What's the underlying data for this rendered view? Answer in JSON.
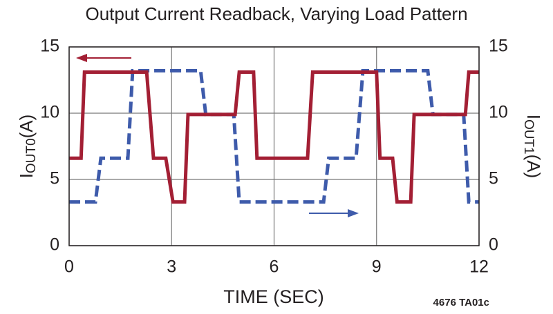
{
  "chart_data": {
    "type": "line",
    "title": "Output Current Readback, Varying Load Pattern",
    "x_label": "TIME (SEC)",
    "y_label": {
      "main": "I",
      "sub": "OUT0",
      "unit": "(A)"
    },
    "y2_label": {
      "main": "I",
      "sub": "OUT1",
      "unit": "(A)"
    },
    "footnote": "4676 TA01c",
    "xlim": [
      0,
      12
    ],
    "xticks": [
      0,
      3,
      6,
      9,
      12
    ],
    "ylim": [
      0,
      15
    ],
    "yticks": [
      0,
      5,
      10,
      15
    ],
    "y2lim": [
      0,
      15
    ],
    "y2ticks": [
      0,
      5,
      10,
      15
    ],
    "grid": true,
    "series": [
      {
        "color": "#a31f34",
        "dashed": false,
        "x": [
          0,
          0.35,
          0.45,
          2.27,
          2.47,
          2.83,
          3.04,
          3.38,
          3.48,
          4.86,
          4.98,
          5.4,
          5.5,
          6.98,
          7.13,
          9.0,
          9.1,
          9.47,
          9.6,
          10.0,
          10.1,
          11.6,
          11.7,
          12
        ],
        "values": [
          6.6,
          6.6,
          13.1,
          13.1,
          6.6,
          6.6,
          3.3,
          3.3,
          9.9,
          9.9,
          13.1,
          13.1,
          6.6,
          6.6,
          13.1,
          13.1,
          6.6,
          6.6,
          3.3,
          3.3,
          9.9,
          9.9,
          13.1,
          13.1
        ]
      },
      {
        "color": "#3e5bab",
        "dashed": true,
        "axis": "y2",
        "x": [
          0,
          0.77,
          0.93,
          1.72,
          1.86,
          3.85,
          4.0,
          4.82,
          4.98,
          7.45,
          7.6,
          8.4,
          8.6,
          10.5,
          10.65,
          11.55,
          11.7,
          12
        ],
        "values": [
          3.3,
          3.3,
          6.6,
          6.6,
          13.2,
          13.2,
          9.9,
          9.9,
          3.3,
          3.3,
          6.6,
          6.6,
          13.2,
          13.2,
          9.9,
          9.9,
          3.3,
          3.3
        ]
      }
    ]
  }
}
